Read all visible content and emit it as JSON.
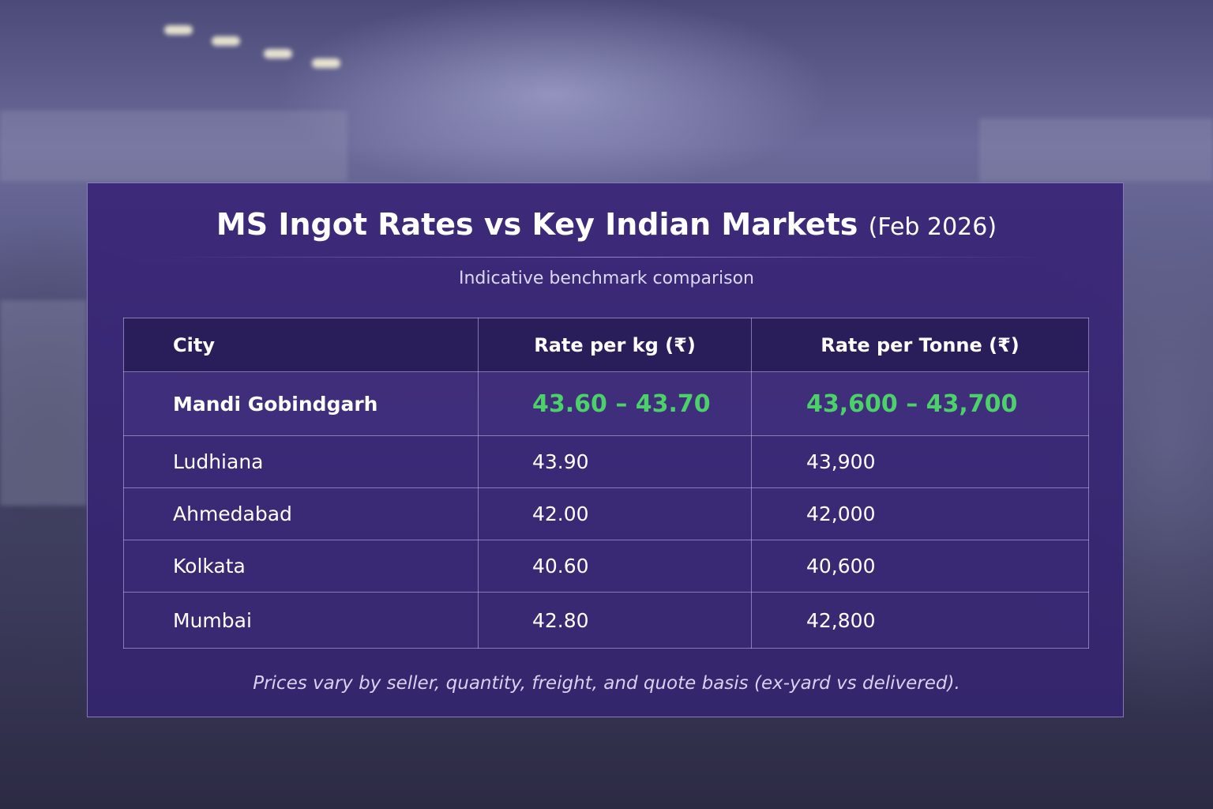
{
  "title": "MS Ingot Rates vs Key Indian Markets",
  "title_suffix": "(Feb 2026)",
  "subtitle": "Indicative benchmark comparison",
  "footnote": "Prices vary by seller, quantity, freight, and quote basis (ex-yard vs delivered).",
  "colors": {
    "highlight": "#4cd16a",
    "panel": "#3a2678"
  },
  "chart_data": {
    "type": "table",
    "columns": [
      "City",
      "Rate per kg (₹)",
      "Rate per Tonne (₹)"
    ],
    "rows": [
      [
        "Mandi Gobindgarh",
        "43.60 – 43.70",
        "43,600 – 43,700"
      ],
      [
        "Ludhiana",
        "43.90",
        "43,900"
      ],
      [
        "Ahmedabad",
        "42.00",
        "42,000"
      ],
      [
        "Kolkata",
        "40.60",
        "40,600"
      ],
      [
        "Mumbai",
        "42.80",
        "42,800"
      ]
    ],
    "highlighted_row": "Mandi Gobindgarh"
  }
}
